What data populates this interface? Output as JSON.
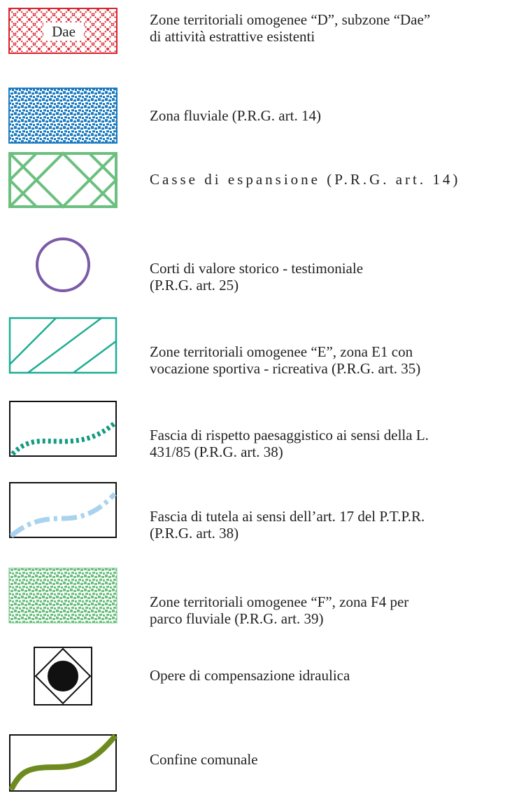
{
  "entries": [
    {
      "symbol_label": "Dae",
      "lines": [
        "Zone territoriali omogenee “D”, subzone “Dae”",
        "di attività estrattive esistenti"
      ]
    },
    {
      "lines": [
        "Zona fluviale (P.R.G. art. 14)"
      ]
    },
    {
      "lines": [
        "Casse di espansione (P.R.G. art. 14)"
      ]
    },
    {
      "lines": [
        "Corti di valore storico - testimoniale",
        "(P.R.G. art. 25)"
      ]
    },
    {
      "lines": [
        "Zone territoriali omogenee “E”, zona E1 con",
        "vocazione sportiva - ricreativa (P.R.G. art. 35)"
      ]
    },
    {
      "lines": [
        "Fascia di rispetto paesaggistico ai sensi della L.",
        "431/85 (P.R.G. art. 38)"
      ]
    },
    {
      "lines": [
        "Fascia di tutela ai sensi dell’art. 17 del P.T.P.R.",
        "(P.R.G. art. 38)"
      ]
    },
    {
      "lines": [
        "Zone territoriali omogenee “F”, zona F4 per",
        "parco fluviale (P.R.G. art. 39)"
      ]
    },
    {
      "lines": [
        "Opere di compensazione idraulica"
      ]
    },
    {
      "lines": [
        "Confine comunale"
      ]
    }
  ]
}
